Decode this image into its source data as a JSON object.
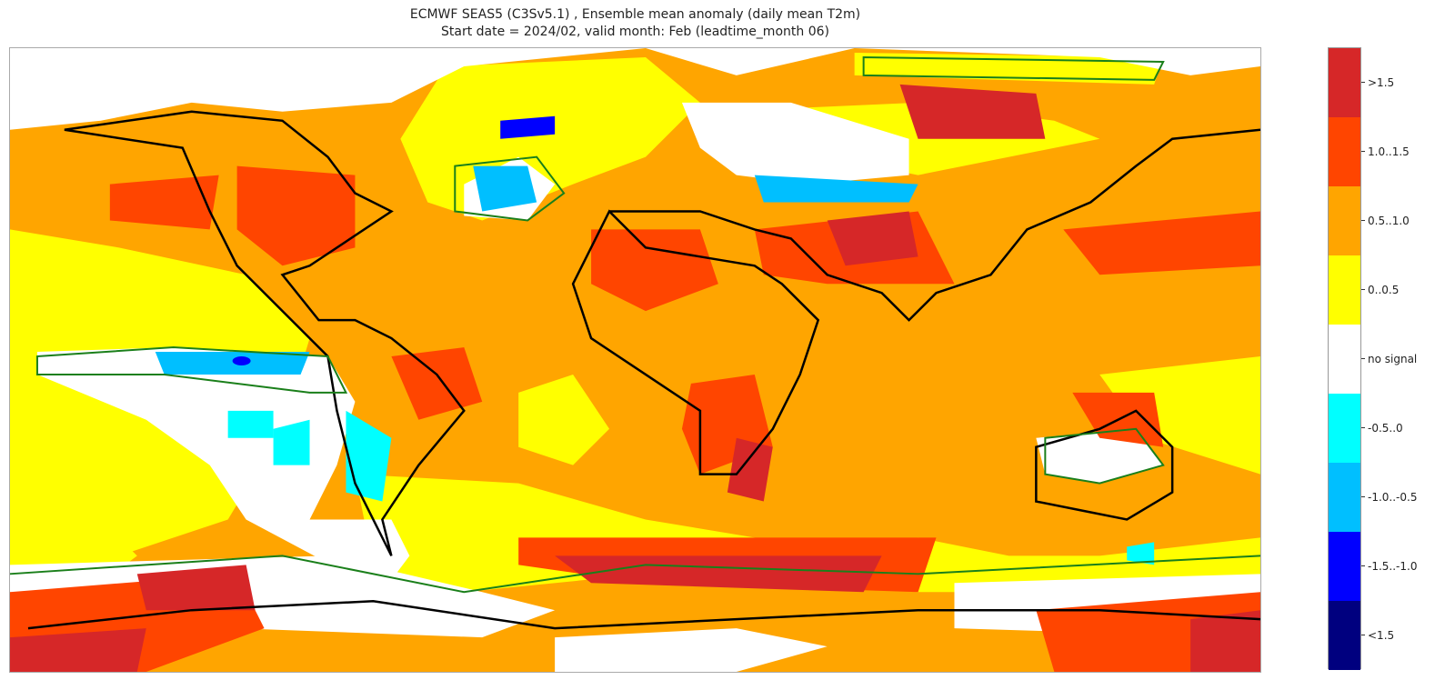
{
  "title": {
    "line1": "ECMWF SEAS5 (C3Sv5.1) , Ensemble mean anomaly (daily mean T2m)",
    "line2": "Start date = 2024/02, valid month: Feb (leadtime_month 06)"
  },
  "legend": {
    "items": [
      {
        "label": ">1.5",
        "color": "#d62728"
      },
      {
        "label": "1.0..1.5",
        "color": "#ff4500"
      },
      {
        "label": "0.5..1.0",
        "color": "#ffa500"
      },
      {
        "label": "0..0.5",
        "color": "#ffff00"
      },
      {
        "label": "no signal",
        "color": "#ffffff"
      },
      {
        "label": "-0.5..0",
        "color": "#00ffff"
      },
      {
        "label": "-1.0..-0.5",
        "color": "#00bfff"
      },
      {
        "label": "-1.5..-1.0",
        "color": "#0000ff"
      },
      {
        "label": "<1.5",
        "color": "#00007f"
      }
    ]
  }
}
